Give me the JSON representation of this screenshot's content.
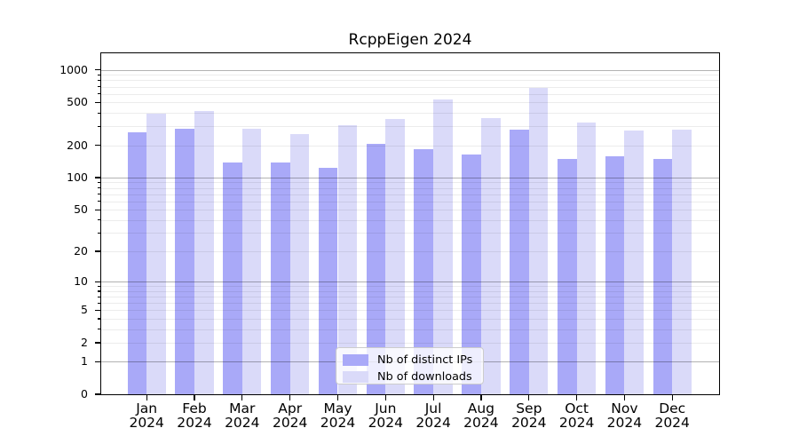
{
  "chart_data": {
    "type": "bar",
    "title": "RcppEigen 2024",
    "categories": [
      "Jan",
      "Feb",
      "Mar",
      "Apr",
      "May",
      "Jun",
      "Jul",
      "Aug",
      "Sep",
      "Oct",
      "Nov",
      "Dec"
    ],
    "year": "2024",
    "series": [
      {
        "name": "Nb of distinct IPs",
        "color": "#a9a9f8",
        "values": [
          265,
          284,
          139,
          139,
          124,
          208,
          185,
          164,
          280,
          150,
          158,
          149
        ]
      },
      {
        "name": "Nb of downloads",
        "color": "#dadaf9",
        "values": [
          392,
          415,
          286,
          255,
          310,
          350,
          537,
          356,
          679,
          326,
          276,
          280
        ]
      }
    ],
    "xlabel": "",
    "ylabel": "",
    "y_scale": "log10(value+1)",
    "ylim": [
      0,
      1430
    ],
    "y_major_ticks": [
      0,
      1,
      2,
      5,
      10,
      20,
      50,
      100,
      200,
      500,
      1000
    ],
    "y_minor_ticks": [
      3,
      4,
      6,
      7,
      8,
      9,
      30,
      40,
      60,
      70,
      80,
      90,
      300,
      400,
      600,
      700,
      800,
      900
    ],
    "grid": "horizontal, minor and major log gridlines, drawn over bars",
    "legend_position": "inside bottom-center"
  },
  "colors": {
    "bar_distinct_ips": "#a9a9f8",
    "bar_downloads": "#dadaf9",
    "grid_major": "rgba(0,0,0,0.30)",
    "grid_minor": "rgba(0,0,0,0.075)",
    "axis": "#000000",
    "background": "#ffffff"
  }
}
